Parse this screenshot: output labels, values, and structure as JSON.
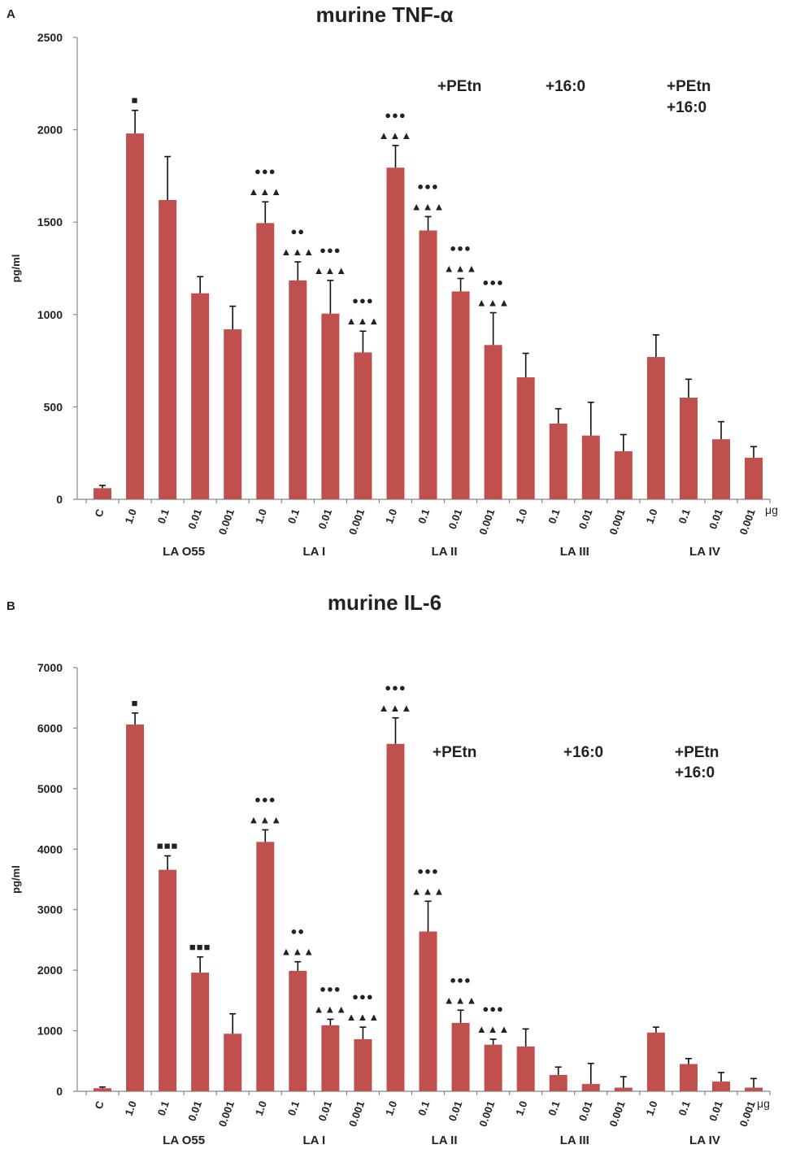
{
  "chart_data": [
    {
      "panel": "A",
      "type": "bar",
      "title": "murine TNF-α",
      "ylabel": "pg/ml",
      "ylim": [
        0,
        2500
      ],
      "yticks": [
        0,
        500,
        1000,
        1500,
        2000,
        2500
      ],
      "x_unit": "μg",
      "categories": [
        "C",
        "1.0",
        "0.1",
        "0.01",
        "0.001",
        "1.0",
        "0.1",
        "0.01",
        "0.001",
        "1.0",
        "0.1",
        "0.01",
        "0.001",
        "1.0",
        "0.1",
        "0.01",
        "0.001",
        "1.0",
        "0.1",
        "0.01",
        "0.001"
      ],
      "groups": [
        {
          "label": "LA O55",
          "start": 1,
          "end": 4
        },
        {
          "label": "LA I",
          "start": 5,
          "end": 8
        },
        {
          "label": "LA II",
          "start": 9,
          "end": 12
        },
        {
          "label": "LA III",
          "start": 13,
          "end": 16
        },
        {
          "label": "LA IV",
          "start": 17,
          "end": 20
        }
      ],
      "conditions": [
        "+PEtn",
        "+16:0",
        "+PEtn\n+16:0"
      ],
      "values": [
        60,
        1980,
        1620,
        1115,
        920,
        1495,
        1185,
        1005,
        795,
        1795,
        1455,
        1125,
        835,
        660,
        410,
        345,
        260,
        770,
        550,
        325,
        225
      ],
      "errors": [
        15,
        125,
        235,
        90,
        125,
        115,
        100,
        180,
        115,
        120,
        75,
        70,
        175,
        130,
        80,
        180,
        90,
        120,
        100,
        95,
        60
      ],
      "markers": [
        "",
        "■",
        "",
        "",
        "",
        "●●●\n▲▲▲",
        "●●\n▲▲▲",
        "●●●\n▲▲▲",
        "●●●\n▲▲▲",
        "●●●\n▲▲▲",
        "●●●\n▲▲▲",
        "●●●\n▲▲▲",
        "●●●\n▲▲▲",
        "",
        "",
        "",
        "",
        "",
        "",
        "",
        ""
      ],
      "bar_color": "#c0504d"
    },
    {
      "panel": "B",
      "type": "bar",
      "title": "murine IL-6",
      "ylabel": "pg/ml",
      "ylim": [
        0,
        7000
      ],
      "yticks": [
        0,
        1000,
        2000,
        3000,
        4000,
        5000,
        6000,
        7000
      ],
      "x_unit": "μg",
      "categories": [
        "C",
        "1.0",
        "0.1",
        "0.01",
        "0.001",
        "1.0",
        "0.1",
        "0.01",
        "0.001",
        "1.0",
        "0.1",
        "0.01",
        "0.001",
        "1.0",
        "0.1",
        "0.01",
        "0.001",
        "1.0",
        "0.1",
        "0.01",
        "0.001"
      ],
      "groups": [
        {
          "label": "LA O55",
          "start": 1,
          "end": 4
        },
        {
          "label": "LA I",
          "start": 5,
          "end": 8
        },
        {
          "label": "LA II",
          "start": 9,
          "end": 12
        },
        {
          "label": "LA III",
          "start": 13,
          "end": 16
        },
        {
          "label": "LA IV",
          "start": 17,
          "end": 20
        }
      ],
      "conditions": [
        "+PEtn",
        "+16:0",
        "+PEtn\n+16:0"
      ],
      "values": [
        50,
        6060,
        3660,
        1960,
        950,
        4120,
        1990,
        1090,
        860,
        5740,
        2640,
        1130,
        770,
        740,
        270,
        120,
        60,
        970,
        450,
        160,
        60
      ],
      "errors": [
        20,
        190,
        230,
        260,
        330,
        200,
        150,
        100,
        200,
        430,
        500,
        210,
        90,
        290,
        130,
        340,
        180,
        90,
        90,
        150,
        150
      ],
      "markers": [
        "",
        "■",
        "■■■",
        "■■■",
        "",
        "●●●\n▲▲▲",
        "●●\n▲▲▲",
        "●●●\n▲▲▲",
        "●●●\n▲▲▲",
        "●●●\n▲▲▲",
        "●●●\n▲▲▲",
        "●●●\n▲▲▲",
        "●●●\n▲▲▲",
        "",
        "",
        "",
        "",
        "",
        "",
        "",
        ""
      ],
      "bar_color": "#c0504d"
    }
  ]
}
